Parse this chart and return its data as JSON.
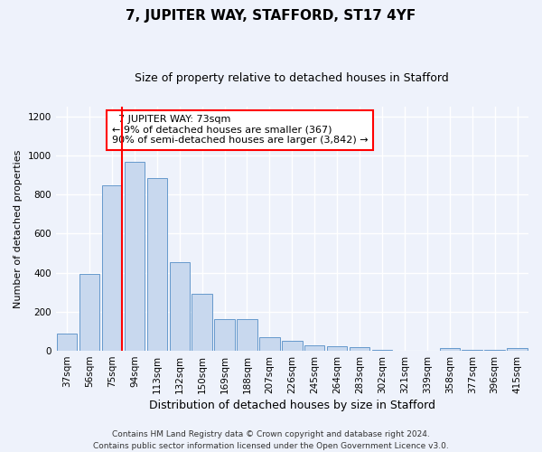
{
  "title": "7, JUPITER WAY, STAFFORD, ST17 4YF",
  "subtitle": "Size of property relative to detached houses in Stafford",
  "xlabel": "Distribution of detached houses by size in Stafford",
  "ylabel": "Number of detached properties",
  "categories": [
    "37sqm",
    "56sqm",
    "75sqm",
    "94sqm",
    "113sqm",
    "132sqm",
    "150sqm",
    "169sqm",
    "188sqm",
    "207sqm",
    "226sqm",
    "245sqm",
    "264sqm",
    "283sqm",
    "302sqm",
    "321sqm",
    "339sqm",
    "358sqm",
    "377sqm",
    "396sqm",
    "415sqm"
  ],
  "values": [
    90,
    395,
    848,
    965,
    885,
    455,
    292,
    163,
    163,
    70,
    50,
    30,
    25,
    18,
    5,
    0,
    0,
    12,
    5,
    5,
    15
  ],
  "bar_color": "#c8d8ee",
  "bar_edge_color": "#6699cc",
  "vline_x_index": 2,
  "vline_color": "red",
  "annotation_text": "  7 JUPITER WAY: 73sqm\n← 9% of detached houses are smaller (367)\n90% of semi-detached houses are larger (3,842) →",
  "annotation_box_color": "white",
  "annotation_box_edge": "red",
  "ylim": [
    0,
    1250
  ],
  "yticks": [
    0,
    200,
    400,
    600,
    800,
    1000,
    1200
  ],
  "footer": "Contains HM Land Registry data © Crown copyright and database right 2024.\nContains public sector information licensed under the Open Government Licence v3.0.",
  "bg_color": "#eef2fb",
  "plot_bg_color": "#eef2fb",
  "grid_color": "#ffffff",
  "title_fontsize": 11,
  "subtitle_fontsize": 9,
  "xlabel_fontsize": 9,
  "ylabel_fontsize": 8,
  "tick_fontsize": 7.5,
  "footer_fontsize": 6.5,
  "annotation_fontsize": 8
}
